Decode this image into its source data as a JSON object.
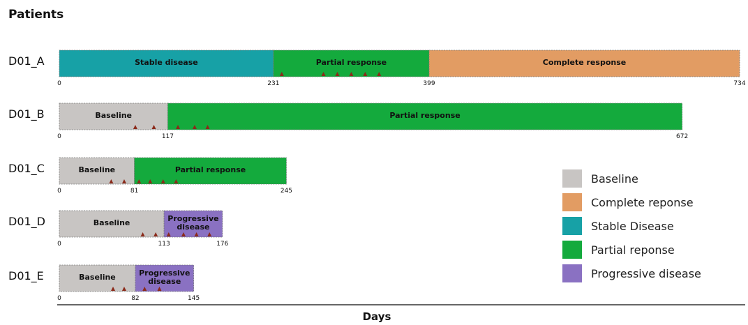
{
  "chart_data": {
    "type": "timeline",
    "title": "Patients",
    "xlabel": "Days",
    "xlim": [
      0,
      734
    ],
    "colors": {
      "Baseline": "#c8c5c3",
      "Complete response": "#e29c63",
      "Stable disease": "#17a1a6",
      "Partial response": "#14aa3d",
      "Progressive disease": "#8a71c2",
      "marker": "#8b2a1a"
    },
    "legend": [
      {
        "label": "Baseline",
        "color": "#c8c5c3"
      },
      {
        "label": "Complete reponse",
        "color": "#e29c63"
      },
      {
        "label": "Stable Disease",
        "color": "#17a1a6"
      },
      {
        "label": "Partial reponse",
        "color": "#14aa3d"
      },
      {
        "label": "Progressive disease",
        "color": "#8a71c2"
      }
    ],
    "patients": [
      {
        "id": "D01_A",
        "segments": [
          {
            "label": "Stable disease",
            "state": "Stable disease",
            "start": 0,
            "end": 231
          },
          {
            "label": "Partial response",
            "state": "Partial response",
            "start": 231,
            "end": 399
          },
          {
            "label": "Complete response",
            "state": "Complete response",
            "start": 399,
            "end": 734
          }
        ],
        "ticks": [
          "0",
          "231",
          "399",
          "734"
        ],
        "markers": [
          240,
          285,
          300,
          315,
          330,
          345
        ]
      },
      {
        "id": "D01_B",
        "segments": [
          {
            "label": "Baseline",
            "state": "Baseline",
            "start": 0,
            "end": 117
          },
          {
            "label": "Partial response",
            "state": "Partial response",
            "start": 117,
            "end": 672
          }
        ],
        "ticks": [
          "0",
          "117",
          "672"
        ],
        "markers": [
          82,
          102,
          128,
          146,
          160
        ]
      },
      {
        "id": "D01_C",
        "segments": [
          {
            "label": "Baseline",
            "state": "Baseline",
            "start": 0,
            "end": 81
          },
          {
            "label": "Partial response",
            "state": "Partial response",
            "start": 81,
            "end": 245
          }
        ],
        "ticks": [
          "0",
          "81",
          "245"
        ],
        "markers": [
          56,
          70,
          86,
          98,
          112,
          126
        ]
      },
      {
        "id": "D01_D",
        "segments": [
          {
            "label": "Baseline",
            "state": "Baseline",
            "start": 0,
            "end": 113
          },
          {
            "label": "Progressive disease",
            "state": "Progressive disease",
            "start": 113,
            "end": 176
          }
        ],
        "ticks": [
          "0",
          "113",
          "176"
        ],
        "markers": [
          90,
          104,
          118,
          134,
          148,
          162
        ]
      },
      {
        "id": "D01_E",
        "segments": [
          {
            "label": "Baseline",
            "state": "Baseline",
            "start": 0,
            "end": 82
          },
          {
            "label": "Progressive disease",
            "state": "Progressive disease",
            "start": 82,
            "end": 145
          }
        ],
        "ticks": [
          "0",
          "82",
          "145"
        ],
        "markers": [
          58,
          70,
          92,
          108
        ]
      }
    ]
  }
}
